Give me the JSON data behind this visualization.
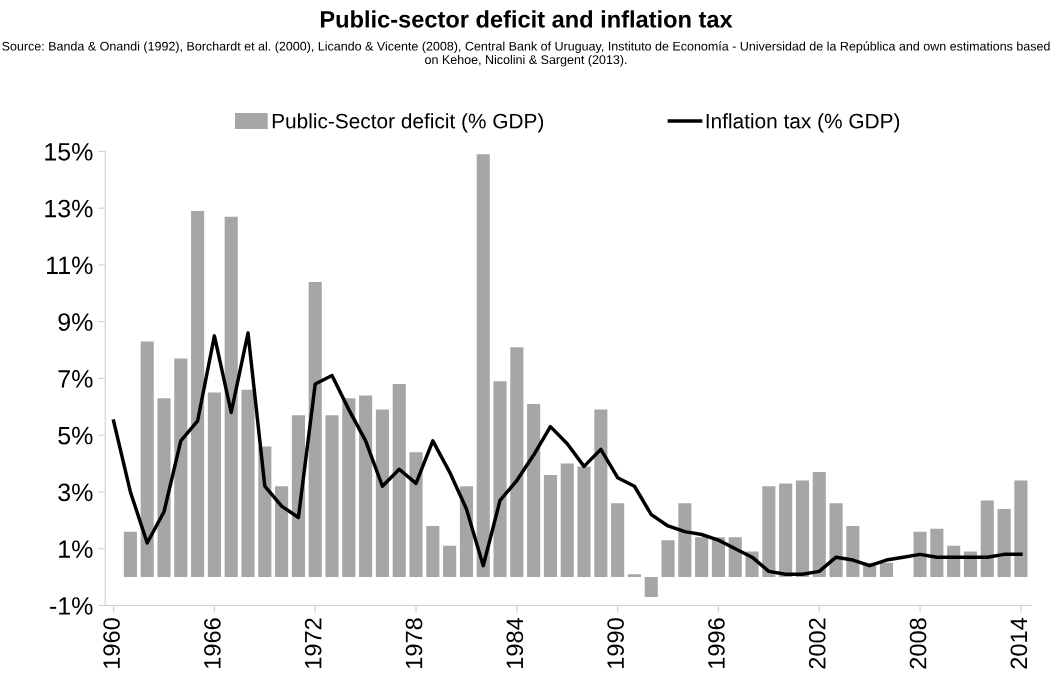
{
  "chart_data": {
    "type": "bar",
    "title": "Public-sector deficit and inflation tax",
    "annotations": [
      "Source: Banda & Onandi (1992), Borchardt et al. (2000), Licando & Vicente (2008), Central Bank of Uruguay, Instituto de Economía - Universidad de la República and own estimations based on Kehoe, Nicolini & Sargent (2013)."
    ],
    "series": [
      {
        "name": "Public-Sector deficit (% GDP)",
        "color": "#a6a6a6",
        "x": [
          1961,
          1962,
          1963,
          1964,
          1965,
          1966,
          1967,
          1968,
          1969,
          1970,
          1971,
          1972,
          1973,
          1974,
          1975,
          1976,
          1977,
          1978,
          1979,
          1980,
          1981,
          1982,
          1983,
          1984,
          1985,
          1986,
          1987,
          1988,
          1989,
          1990,
          1991,
          1992,
          1993,
          1994,
          1995,
          1996,
          1997,
          1998,
          1999,
          2000,
          2001,
          2002,
          2003,
          2004,
          2005,
          2006,
          2007,
          2008,
          2009,
          2010,
          2011,
          2012,
          2013,
          2014
        ],
        "values": [
          1.6,
          8.3,
          6.3,
          7.7,
          12.9,
          6.5,
          12.7,
          6.6,
          4.6,
          3.2,
          5.7,
          10.4,
          5.7,
          6.3,
          6.4,
          5.9,
          6.8,
          4.4,
          1.8,
          1.1,
          3.2,
          14.9,
          6.9,
          8.1,
          6.1,
          3.6,
          4.0,
          3.9,
          5.9,
          2.6,
          0.1,
          -0.7,
          1.3,
          2.6,
          1.4,
          1.4,
          1.4,
          0.9,
          3.2,
          3.3,
          3.4,
          3.7,
          2.6,
          1.8,
          0.5,
          0.5,
          null,
          1.6,
          1.7,
          1.1,
          0.9,
          2.7,
          2.4,
          3.4
        ]
      },
      {
        "name": "Inflation tax (% GDP)",
        "type": "line",
        "color": "#000000",
        "x": [
          1960,
          1961,
          1962,
          1963,
          1964,
          1965,
          1966,
          1967,
          1968,
          1969,
          1970,
          1971,
          1972,
          1973,
          1974,
          1975,
          1976,
          1977,
          1978,
          1979,
          1980,
          1981,
          1982,
          1983,
          1984,
          1985,
          1986,
          1987,
          1988,
          1989,
          1990,
          1991,
          1992,
          1993,
          1994,
          1995,
          1996,
          1997,
          1998,
          1999,
          2000,
          2001,
          2002,
          2003,
          2004,
          2005,
          2006,
          2007,
          2008,
          2009,
          2010,
          2011,
          2012,
          2013,
          2014
        ],
        "values": [
          5.5,
          3.0,
          1.2,
          2.3,
          4.8,
          5.5,
          8.5,
          5.8,
          8.6,
          3.2,
          2.5,
          2.1,
          6.8,
          7.1,
          5.9,
          4.8,
          3.2,
          3.8,
          3.3,
          4.8,
          3.7,
          2.4,
          0.4,
          2.7,
          3.4,
          4.3,
          5.3,
          4.7,
          3.9,
          4.5,
          3.5,
          3.2,
          2.2,
          1.8,
          1.6,
          1.5,
          1.3,
          1.0,
          0.7,
          0.2,
          0.1,
          0.1,
          0.2,
          0.7,
          0.6,
          0.4,
          0.6,
          0.7,
          0.8,
          0.7,
          0.7,
          0.7,
          0.7,
          0.8,
          0.8
        ]
      }
    ],
    "xlim": [
      1959.5,
      2014.6
    ],
    "xticks": [
      1960,
      1966,
      1972,
      1978,
      1984,
      1990,
      1996,
      2002,
      2008,
      2014
    ],
    "ylim": [
      -1,
      15
    ],
    "yticks": [
      {
        "value": -1,
        "label": "-1%"
      },
      {
        "value": 1,
        "label": "1%"
      },
      {
        "value": 3,
        "label": "3%"
      },
      {
        "value": 5,
        "label": "5%"
      },
      {
        "value": 7,
        "label": "7%"
      },
      {
        "value": 9,
        "label": "9%"
      },
      {
        "value": 11,
        "label": "11%"
      },
      {
        "value": 13,
        "label": "13%"
      },
      {
        "value": 15,
        "label": "15%"
      }
    ],
    "legend": "top",
    "grid": false
  }
}
